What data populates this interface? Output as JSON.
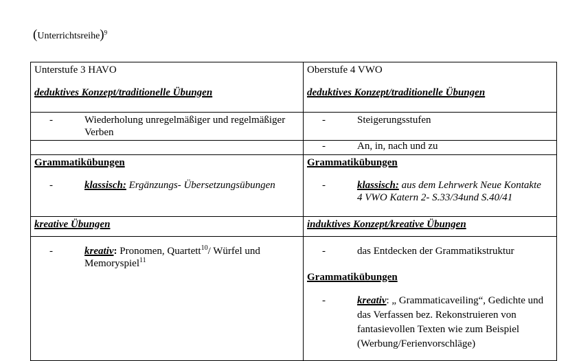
{
  "colors": {
    "background": "#ffffff",
    "text": "#000000",
    "border": "#000000"
  },
  "bullet_char": "-",
  "heading": {
    "paren_open": "(",
    "text": "Unterrichtsreihe",
    "paren_close": ")",
    "footnote": "9"
  },
  "header_row": {
    "left_title": "Unterstufe 3 HAVO",
    "left_concept": "deduktives Konzept/traditionelle Übungen",
    "right_title": "Oberstufe 4 VWO",
    "right_concept": "deduktives Konzept/traditionelle Übungen"
  },
  "row_2": {
    "left_item_lines": [
      "Wiederholung unregelmäßiger und regelmäßiger",
      "Verben"
    ],
    "right_item": "Steigerungsstufen"
  },
  "row_3": {
    "right_item": "An, in, nach und zu"
  },
  "row_4": {
    "left_heading": "Grammatikübungen",
    "left_label": "klassisch:",
    "left_item": "Ergänzungs- Übersetzungsübungen",
    "right_heading": "Grammatikübungen",
    "right_label": "klassisch:",
    "right_item_lines": [
      "aus dem Lehrwerk Neue Kontakte",
      "4 VWO Katern 2- S.33/34und S.40/41"
    ]
  },
  "row_5": {
    "left_heading": "kreative Übungen",
    "right_heading": "induktives Konzept/kreative Übungen"
  },
  "row_6": {
    "left_label": "kreativ",
    "left_colon": ":",
    "left_run1": "Pronomen, Quartett",
    "left_sup1": "10",
    "left_run2": "/ Würfel und",
    "left_run3": "Memoryspiel",
    "left_sup2": "11",
    "right_item1": "das Entdecken der Grammatikstruktur",
    "right_heading": "Grammatikübungen",
    "right_label": "kreativ",
    "right_colon": ":",
    "right_item_lines": [
      "„ Grammaticaveiling“, Gedichte und",
      "das Verfassen bez. Rekonstruieren von",
      "fantasievollen Texten wie zum Beispiel",
      "(Werbung/Ferienvorschläge)"
    ]
  }
}
